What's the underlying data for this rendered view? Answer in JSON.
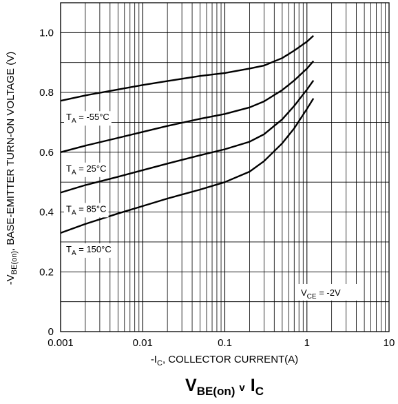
{
  "chart_data": {
    "type": "line",
    "title": {
      "main": "V",
      "main_sub": "BE(on)",
      "connector": "v",
      "second": "I",
      "second_sub": "C"
    },
    "xlabel": {
      "pre": "-I",
      "sub": "C",
      "post": ", COLLECTOR CURRENT(A)"
    },
    "ylabel": {
      "pre": "-V",
      "sub": "BE(on)",
      "post": ", BASE-EMITTER TURN-ON VOLTAGE (V)"
    },
    "x_scale": "log",
    "xlim": [
      0.001,
      10
    ],
    "ylim": [
      0,
      1.1
    ],
    "x_ticks": [
      0.001,
      0.01,
      0.1,
      1,
      10
    ],
    "x_tick_labels": [
      "0.001",
      "0.01",
      "0.1",
      "1",
      "10"
    ],
    "y_ticks": [
      0,
      0.2,
      0.4,
      0.6,
      0.8,
      1.0
    ],
    "y_tick_labels": [
      "0",
      "0.2",
      "0.4",
      "0.6",
      "0.8",
      "1.0"
    ],
    "y_minor_gridlines": [
      0.1,
      0.3,
      0.5,
      0.7,
      0.9
    ],
    "grid": true,
    "series": [
      {
        "name": "T_A = -55°C",
        "label": {
          "pre": "T",
          "sub": "A",
          "post": " = -55°C"
        },
        "x": [
          0.001,
          0.002,
          0.005,
          0.01,
          0.02,
          0.05,
          0.1,
          0.2,
          0.3,
          0.5,
          0.7,
          1.0,
          1.2
        ],
        "y": [
          0.772,
          0.79,
          0.81,
          0.825,
          0.838,
          0.855,
          0.865,
          0.88,
          0.89,
          0.915,
          0.94,
          0.97,
          0.99
        ]
      },
      {
        "name": "T_A = 25°C",
        "label": {
          "pre": "T",
          "sub": "A",
          "post": " = 25°C"
        },
        "x": [
          0.001,
          0.002,
          0.005,
          0.01,
          0.02,
          0.05,
          0.1,
          0.2,
          0.3,
          0.5,
          0.7,
          1.0,
          1.2
        ],
        "y": [
          0.6,
          0.622,
          0.648,
          0.668,
          0.688,
          0.712,
          0.728,
          0.75,
          0.77,
          0.808,
          0.84,
          0.88,
          0.905
        ]
      },
      {
        "name": "T_A = 85°C",
        "label": {
          "pre": "T",
          "sub": "A",
          "post": " = 85°C"
        },
        "x": [
          0.001,
          0.002,
          0.005,
          0.01,
          0.02,
          0.05,
          0.1,
          0.2,
          0.3,
          0.5,
          0.7,
          1.0,
          1.2
        ],
        "y": [
          0.465,
          0.49,
          0.518,
          0.54,
          0.562,
          0.59,
          0.61,
          0.635,
          0.66,
          0.71,
          0.755,
          0.81,
          0.84
        ]
      },
      {
        "name": "T_A = 150°C",
        "label": {
          "pre": "T",
          "sub": "A",
          "post": " = 150°C"
        },
        "x": [
          0.001,
          0.002,
          0.005,
          0.01,
          0.02,
          0.05,
          0.1,
          0.2,
          0.3,
          0.5,
          0.7,
          1.0,
          1.2
        ],
        "y": [
          0.33,
          0.36,
          0.395,
          0.42,
          0.445,
          0.475,
          0.5,
          0.535,
          0.57,
          0.63,
          0.68,
          0.745,
          0.78
        ]
      }
    ],
    "annotation": {
      "pre": "V",
      "sub": "CE",
      "post": " = -2V"
    },
    "colors": {
      "line": "#000000",
      "grid": "#000000",
      "background": "#ffffff"
    }
  }
}
